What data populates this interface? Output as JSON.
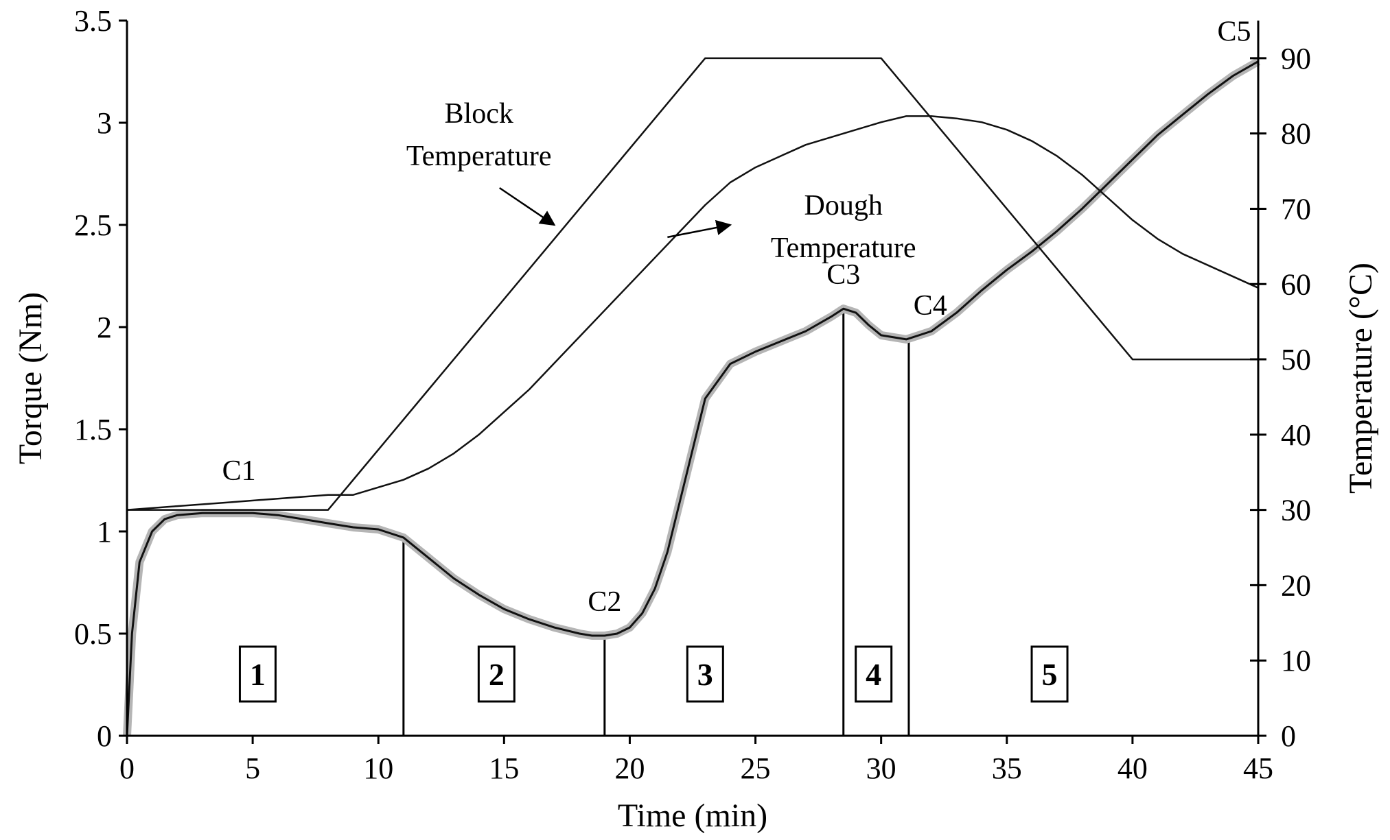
{
  "chart_data": {
    "type": "line",
    "xlabel": "Time (min)",
    "ylabel": "Torque (Nm)",
    "y2label": "Temperature (°C)",
    "xlim": [
      0,
      45
    ],
    "ylim": [
      0,
      3.5
    ],
    "y2lim": [
      0,
      95
    ],
    "xticks": [
      0,
      5,
      10,
      15,
      20,
      25,
      30,
      35,
      40,
      45
    ],
    "yticks": [
      0,
      0.5,
      1,
      1.5,
      2,
      2.5,
      3,
      3.5
    ],
    "y2ticks": [
      0,
      10,
      20,
      30,
      40,
      50,
      60,
      70,
      80,
      90
    ],
    "grid": false,
    "series": [
      {
        "name": "Torque",
        "axis": "left",
        "x": [
          0,
          0.2,
          0.5,
          1,
          1.5,
          2,
          3,
          4,
          5,
          6,
          7,
          8,
          9,
          10,
          11,
          12,
          13,
          14,
          15,
          16,
          17,
          18,
          18.5,
          19,
          19.5,
          20,
          20.5,
          21,
          21.5,
          22,
          22.5,
          23,
          24,
          25,
          26,
          27,
          28,
          28.5,
          29,
          29.5,
          30,
          30.5,
          31,
          32,
          33,
          34,
          35,
          36,
          37,
          38,
          39,
          40,
          41,
          42,
          43,
          44,
          45
        ],
        "values": [
          0,
          0.5,
          0.85,
          1.0,
          1.06,
          1.08,
          1.09,
          1.09,
          1.09,
          1.08,
          1.06,
          1.04,
          1.02,
          1.01,
          0.97,
          0.87,
          0.77,
          0.69,
          0.62,
          0.57,
          0.53,
          0.5,
          0.49,
          0.49,
          0.5,
          0.53,
          0.6,
          0.72,
          0.9,
          1.15,
          1.4,
          1.65,
          1.82,
          1.88,
          1.93,
          1.98,
          2.05,
          2.09,
          2.07,
          2.01,
          1.96,
          1.95,
          1.94,
          1.98,
          2.07,
          2.18,
          2.28,
          2.37,
          2.47,
          2.58,
          2.7,
          2.82,
          2.94,
          3.04,
          3.14,
          3.23,
          3.3
        ]
      },
      {
        "name": "Block Temperature",
        "axis": "right",
        "x": [
          0,
          8,
          23,
          30,
          40,
          45
        ],
        "values": [
          30,
          30,
          90,
          90,
          50,
          50
        ]
      },
      {
        "name": "Dough Temperature",
        "axis": "right",
        "x": [
          0,
          2,
          4,
          6,
          8,
          9,
          10,
          11,
          12,
          13,
          14,
          15,
          16,
          17,
          18,
          19,
          20,
          21,
          22,
          23,
          24,
          25,
          26,
          27,
          28,
          29,
          30,
          31,
          32,
          33,
          34,
          35,
          36,
          37,
          38,
          39,
          40,
          41,
          42,
          43,
          44,
          45
        ],
        "values": [
          30,
          30.5,
          31,
          31.5,
          32,
          32,
          33,
          34,
          35.5,
          37.5,
          40,
          43,
          46,
          49.5,
          53,
          56.5,
          60,
          63.5,
          67,
          70.5,
          73.5,
          75.5,
          77,
          78.5,
          79.5,
          80.5,
          81.5,
          82.3,
          82.3,
          82,
          81.5,
          80.5,
          79,
          77,
          74.5,
          71.5,
          68.5,
          66,
          64,
          62.5,
          61,
          59.5
        ]
      }
    ],
    "markers": [
      {
        "label": "C1",
        "x": 5,
        "y": 1.09
      },
      {
        "label": "C2",
        "x": 19,
        "y": 0.49
      },
      {
        "label": "C3",
        "x": 28.5,
        "y": 2.09
      },
      {
        "label": "C4",
        "x": 31,
        "y": 1.94
      },
      {
        "label": "C5",
        "x": 45,
        "y": 3.3
      }
    ],
    "dividers": [
      {
        "x": 11,
        "y": 0.97
      },
      {
        "x": 19,
        "y": 0.49
      },
      {
        "x": 28.5,
        "y": 2.09
      },
      {
        "x": 31.1,
        "y": 1.94
      }
    ],
    "zones": [
      {
        "label": "1",
        "x": 5.2
      },
      {
        "label": "2",
        "x": 14.7
      },
      {
        "label": "3",
        "x": 23
      },
      {
        "label": "4",
        "x": 29.7
      },
      {
        "label": "5",
        "x": 36.7
      }
    ],
    "annotations": [
      {
        "lines": [
          "Block",
          "Temperature"
        ],
        "x": 14,
        "y": 3.0,
        "arrow_to": {
          "x": 17,
          "y": 2.5
        },
        "target_series": "Block Temperature"
      },
      {
        "lines": [
          "Dough",
          "Temperature"
        ],
        "x": 28.5,
        "y": 2.55,
        "arrow_from": {
          "x": 21.5,
          "y": 2.44
        },
        "arrow_to": {
          "x": 24,
          "y": 2.5
        },
        "target_series": "Dough Temperature"
      }
    ]
  }
}
